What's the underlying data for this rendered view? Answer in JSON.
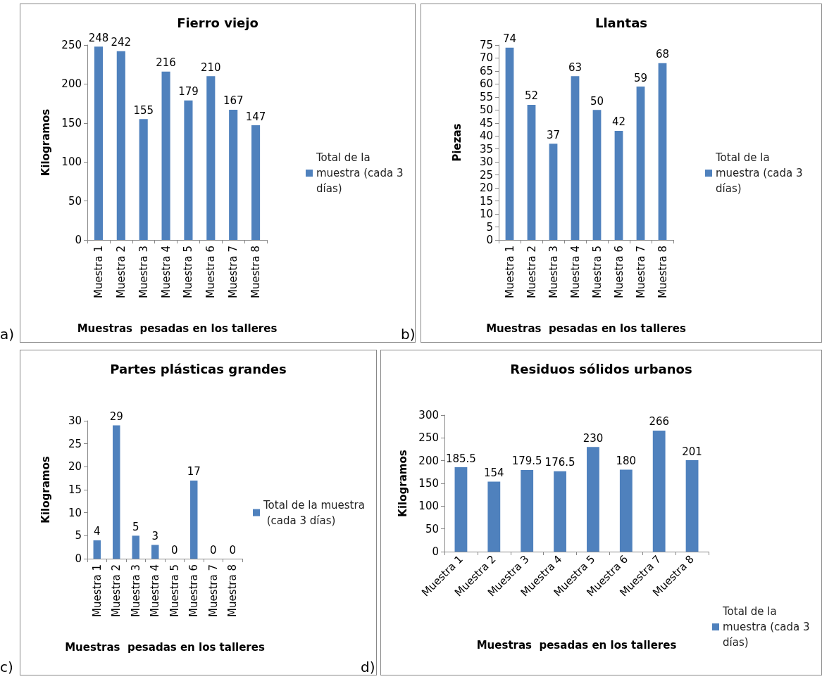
{
  "chart_data": [
    {
      "type": "bar",
      "title": "Fierro viejo",
      "xlabel": "Muestras  pesadas en los talleres",
      "ylabel": "Kilogramos",
      "categories": [
        "Muestra 1",
        "Muestra 2",
        "Muestra 3",
        "Muestra 4",
        "Muestra 5",
        "Muestra 6",
        "Muestra 7",
        "Muestra 8"
      ],
      "series": [
        {
          "name": "Total de la muestra (cada 3 días)",
          "color": "#4f81bd",
          "values": [
            248,
            242,
            155,
            216,
            179,
            210,
            167,
            147
          ]
        }
      ],
      "ylim": [
        0,
        250
      ],
      "yticks": [
        0,
        50,
        100,
        150,
        200,
        250
      ],
      "grid": false,
      "legend": "right",
      "data_labels": true,
      "annotations": [
        "a)"
      ]
    },
    {
      "type": "bar",
      "title": "Llantas",
      "xlabel": "Muestras  pesadas en los talleres",
      "ylabel": "Piezas",
      "categories": [
        "Muestra 1",
        "Muestra 2",
        "Muestra 3",
        "Muestra 4",
        "Muestra 5",
        "Muestra 6",
        "Muestra 7",
        "Muestra 8"
      ],
      "series": [
        {
          "name": "Total de la muestra (cada 3 días)",
          "color": "#4f81bd",
          "values": [
            74,
            52,
            37,
            63,
            50,
            42,
            59,
            68
          ]
        }
      ],
      "ylim": [
        0,
        75
      ],
      "yticks": [
        0,
        5,
        10,
        15,
        20,
        25,
        30,
        35,
        40,
        45,
        50,
        55,
        60,
        65,
        70,
        75
      ],
      "grid": false,
      "legend": "right",
      "data_labels": true,
      "annotations": [
        "b)"
      ]
    },
    {
      "type": "bar",
      "title": "Partes plásticas grandes",
      "xlabel": "Muestras  pesadas en los talleres",
      "ylabel": "Kilogramos",
      "categories": [
        "Muestra 1",
        "Muestra 2",
        "Muestra 3",
        "Muestra 4",
        "Muestra 5",
        "Muestra 6",
        "Muestra 7",
        "Muestra 8"
      ],
      "series": [
        {
          "name": "Total de la muestra (cada 3 días)",
          "color": "#4f81bd",
          "values": [
            4,
            29,
            5,
            3,
            0,
            17,
            0,
            0
          ]
        }
      ],
      "ylim": [
        0,
        30
      ],
      "yticks": [
        0,
        5,
        10,
        15,
        20,
        25,
        30
      ],
      "grid": false,
      "legend": "right",
      "data_labels": true,
      "annotations": [
        "c)"
      ]
    },
    {
      "type": "bar",
      "title": "Residuos sólidos urbanos",
      "xlabel": "Muestras  pesadas en los talleres",
      "ylabel": "Kilogramos",
      "categories": [
        "Muestra 1",
        "Muestra 2",
        "Muestra 3",
        "Muestra 4",
        "Muestra 5",
        "Muestra 6",
        "Muestra 7",
        "Muestra 8"
      ],
      "series": [
        {
          "name": "Total de la muestra (cada 3 días)",
          "color": "#4f81bd",
          "values": [
            185.5,
            154,
            179.5,
            176.5,
            230,
            180,
            266,
            201
          ]
        }
      ],
      "ylim": [
        0,
        300
      ],
      "yticks": [
        0,
        50,
        100,
        150,
        200,
        250,
        300
      ],
      "grid": false,
      "legend": "bottom right",
      "data_labels": true,
      "annotations": [
        "d)"
      ]
    }
  ]
}
